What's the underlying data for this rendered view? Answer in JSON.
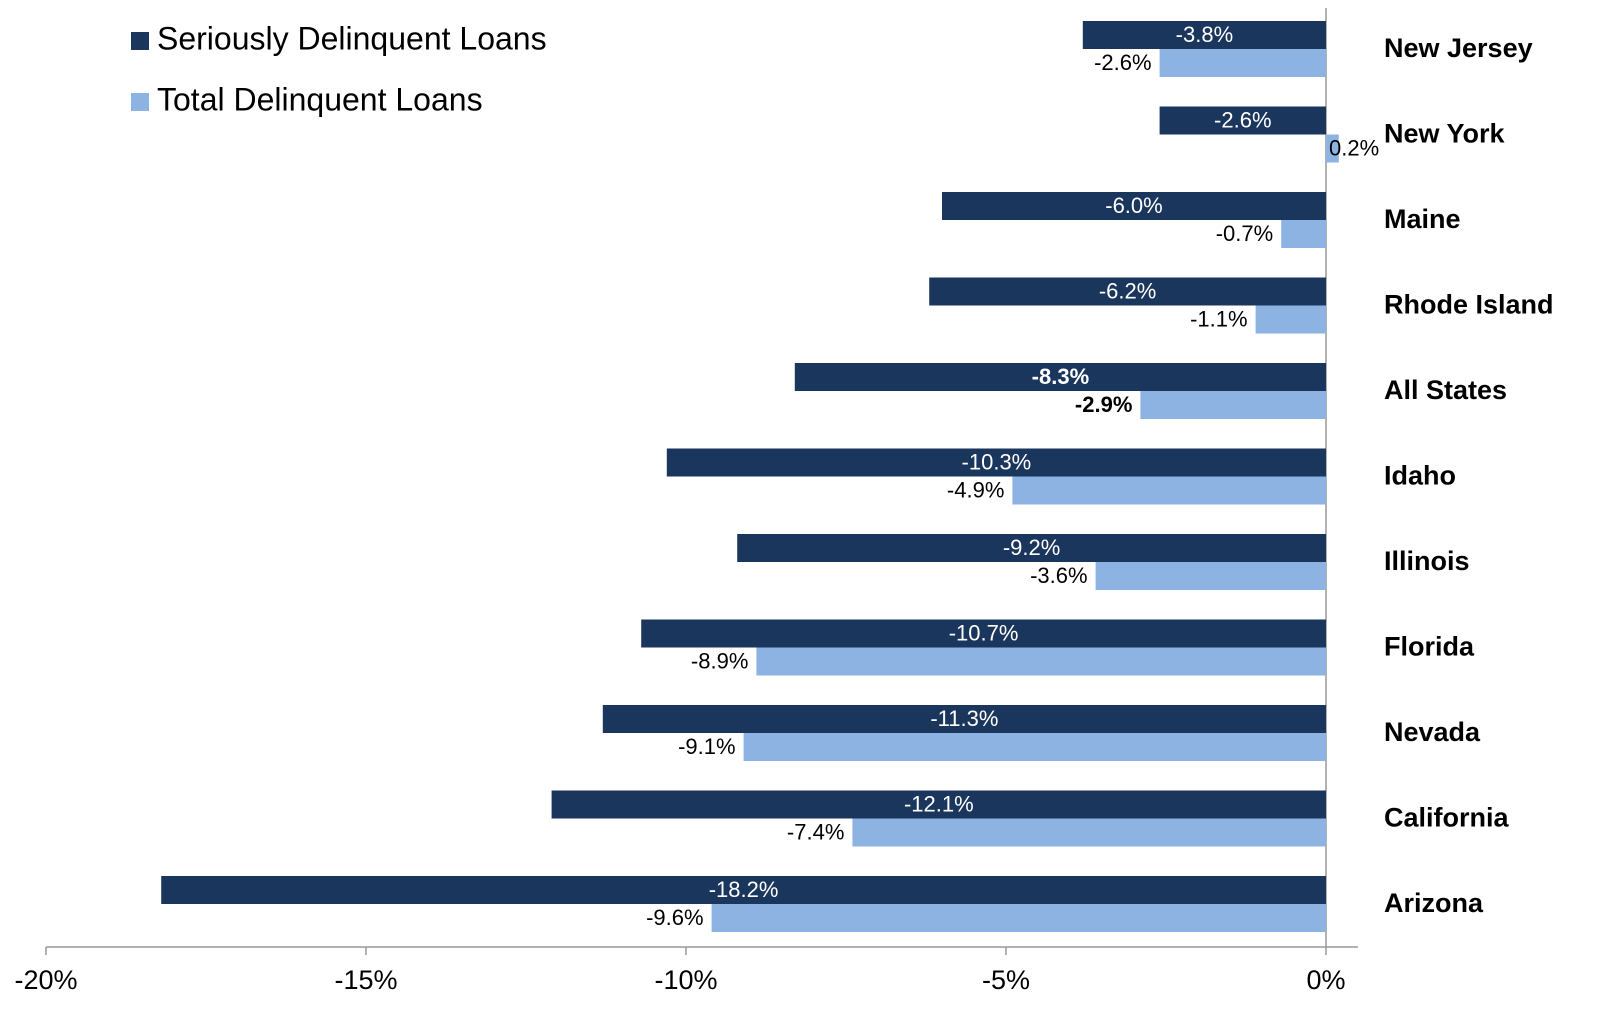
{
  "chart_data": {
    "type": "hbar",
    "categories": [
      "New Jersey",
      "New York",
      "Maine",
      "Rhode Island",
      "All States",
      "Idaho",
      "Illinois",
      "Florida",
      "Nevada",
      "California",
      "Arizona"
    ],
    "series": [
      {
        "name": "Seriously Delinquent Loans",
        "color": "#1b365d",
        "values": [
          -3.8,
          -2.6,
          -6.0,
          -6.2,
          -8.3,
          -10.3,
          -9.2,
          -10.7,
          -11.3,
          -12.1,
          -18.2
        ],
        "value_labels": [
          "-3.8%",
          "-2.6%",
          "-6.0%",
          "-6.2%",
          "-8.3%",
          "-10.3%",
          "-9.2%",
          "-10.7%",
          "-11.3%",
          "-12.1%",
          "-18.2%"
        ]
      },
      {
        "name": "Total Delinquent Loans",
        "color": "#8db3e2",
        "values": [
          -2.6,
          0.2,
          -0.7,
          -1.1,
          -2.9,
          -4.9,
          -3.6,
          -8.9,
          -9.1,
          -7.4,
          -9.6
        ],
        "value_labels": [
          "-2.6%",
          "0.2%",
          "-0.7%",
          "-1.1%",
          "-2.9%",
          "-4.9%",
          "-3.6%",
          "-8.9%",
          "-9.1%",
          "-7.4%",
          "-9.6%"
        ]
      }
    ],
    "xlim": [
      -20,
      0.5
    ],
    "xticks": [
      {
        "value": -20,
        "label": "-20%"
      },
      {
        "value": -15,
        "label": "-15%"
      },
      {
        "value": -10,
        "label": "-10%"
      },
      {
        "value": -5,
        "label": "-5%"
      },
      {
        "value": 0,
        "label": "0%"
      }
    ],
    "bold_category_index": 4,
    "legend": "top-left",
    "grid": false
  }
}
